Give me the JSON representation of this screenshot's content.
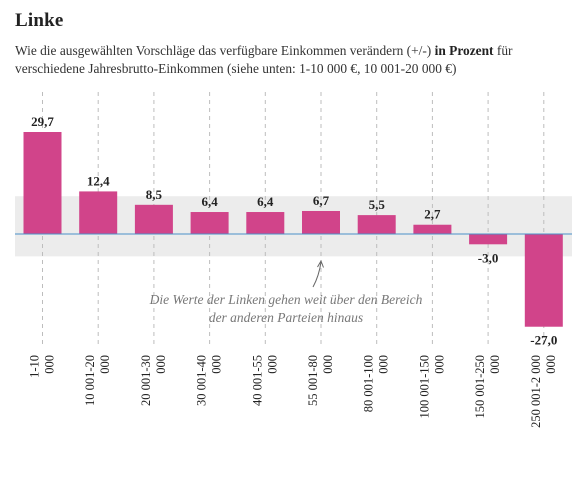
{
  "title": "Linke",
  "subtitle": {
    "before": "Wie die ausgewählten Vorschläge das verfügbare Einkommen verändern (+/-) ",
    "bold": "in Prozent",
    "after": " für verschiedene Jahresbrutto-Einkommen (siehe unten: 1-10 000 €, 10 001-20 000 €)"
  },
  "colors": {
    "bar": "#d1448a",
    "band": "#ececec",
    "gridline": "#bdbdbd",
    "zero_line": "#4a90c8",
    "annotation_text": "#777777"
  },
  "chart_data": {
    "type": "bar",
    "categories": [
      [
        "1-10",
        "000"
      ],
      [
        "10 001-20",
        "000"
      ],
      [
        "20 001-30",
        "000"
      ],
      [
        "30 001-40",
        "000"
      ],
      [
        "40 001-55",
        "000"
      ],
      [
        "55 001-80",
        "000"
      ],
      [
        "80 001-100",
        "000"
      ],
      [
        "100 001-150",
        "000"
      ],
      [
        "150 001-250",
        "000"
      ],
      [
        "250 001-2 000",
        "000"
      ]
    ],
    "values": [
      29.7,
      12.4,
      8.5,
      6.4,
      6.4,
      6.7,
      5.5,
      2.7,
      -3.0,
      -27.0
    ],
    "value_labels": [
      "29,7",
      "12,4",
      "8,5",
      "6,4",
      "6,4",
      "6,7",
      "5,5",
      "2,7",
      "-3,0",
      "-27,0"
    ],
    "ylim": [
      -27.0,
      29.7
    ],
    "reference_band": [
      -6.5,
      11.0
    ],
    "annotation": {
      "lines": [
        "Die Werte der Linken gehen weit über den Bereich",
        "der anderen Parteien hinaus"
      ],
      "category_index": 5
    },
    "grid": true
  }
}
